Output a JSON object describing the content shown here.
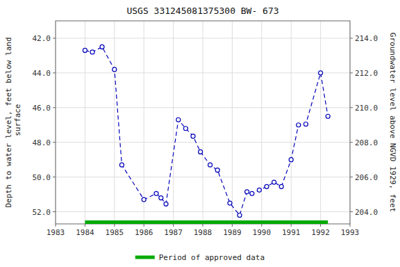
{
  "chart_data": {
    "type": "line",
    "title": "USGS 331245081375300 BW- 673",
    "ylabel": "Depth to water level, feet below land\n surface",
    "y2label": "Groundwater level above NGVD 1929, feet",
    "x": [
      1984.0,
      1984.25,
      1984.58,
      1985.0,
      1985.25,
      1986.0,
      1986.42,
      1986.58,
      1986.75,
      1987.17,
      1987.42,
      1987.67,
      1987.92,
      1988.25,
      1988.5,
      1988.92,
      1989.25,
      1989.5,
      1989.67,
      1989.92,
      1990.17,
      1990.42,
      1990.67,
      1991.0,
      1991.25,
      1991.5,
      1992.0,
      1992.25
    ],
    "values": [
      42.7,
      42.8,
      42.5,
      43.8,
      49.3,
      51.3,
      50.95,
      51.2,
      51.55,
      46.7,
      47.2,
      47.65,
      48.55,
      49.3,
      49.6,
      51.5,
      52.2,
      50.85,
      50.95,
      50.75,
      50.55,
      50.3,
      50.55,
      49.0,
      47.0,
      46.95,
      44.0,
      46.5
    ],
    "color": "#0000BB",
    "line_style": "dashed",
    "marker": "circle",
    "xlim": [
      1983,
      1993
    ],
    "xticks": [
      1983,
      1984,
      1985,
      1986,
      1987,
      1988,
      1989,
      1990,
      1991,
      1992,
      1993
    ],
    "ylim": [
      52.7,
      41.0
    ],
    "yticks": [
      {
        "value": 42.0,
        "label": "42.0"
      },
      {
        "value": 44.0,
        "label": "44.0"
      },
      {
        "value": 46.0,
        "label": "46.0"
      },
      {
        "value": 48.0,
        "label": "48.0"
      },
      {
        "value": 50.0,
        "label": "50.0"
      },
      {
        "value": 52.0,
        "label": "52.0"
      }
    ],
    "y2lim": [
      203.3,
      215.0
    ],
    "y2ticks": [
      {
        "value": 204.0,
        "label": "204.0"
      },
      {
        "value": 206.0,
        "label": "206.0"
      },
      {
        "value": 208.0,
        "label": "208.0"
      },
      {
        "value": 210.0,
        "label": "210.0"
      },
      {
        "value": 212.0,
        "label": "212.0"
      },
      {
        "value": 214.0,
        "label": "214.0"
      }
    ],
    "periods": [
      {
        "name": "Period of approved data",
        "start": 1984.0,
        "end": 1992.25,
        "color": "#00AA00"
      }
    ],
    "grid": true,
    "legend": "bottom"
  }
}
